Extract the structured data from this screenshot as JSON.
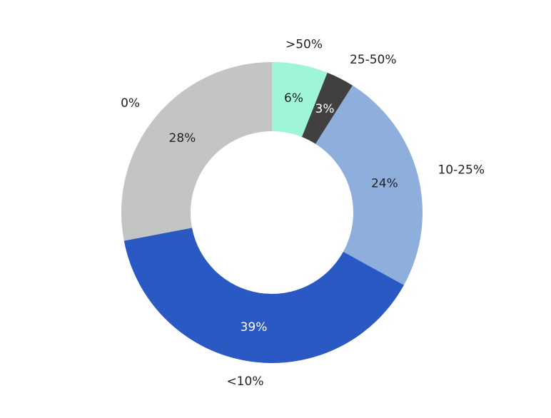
{
  "chart_data": {
    "type": "donut",
    "categories": [
      ">50%",
      "25-50%",
      "10-25%",
      "<10%",
      "0%"
    ],
    "values": [
      6,
      3,
      24,
      39,
      28
    ],
    "value_labels": [
      "6%",
      "3%",
      "24%",
      "39%",
      "28%"
    ],
    "colors": [
      "#9ef5d9",
      "#404040",
      "#8eafdc",
      "#2b59c3",
      "#c2c5c4"
    ]
  }
}
